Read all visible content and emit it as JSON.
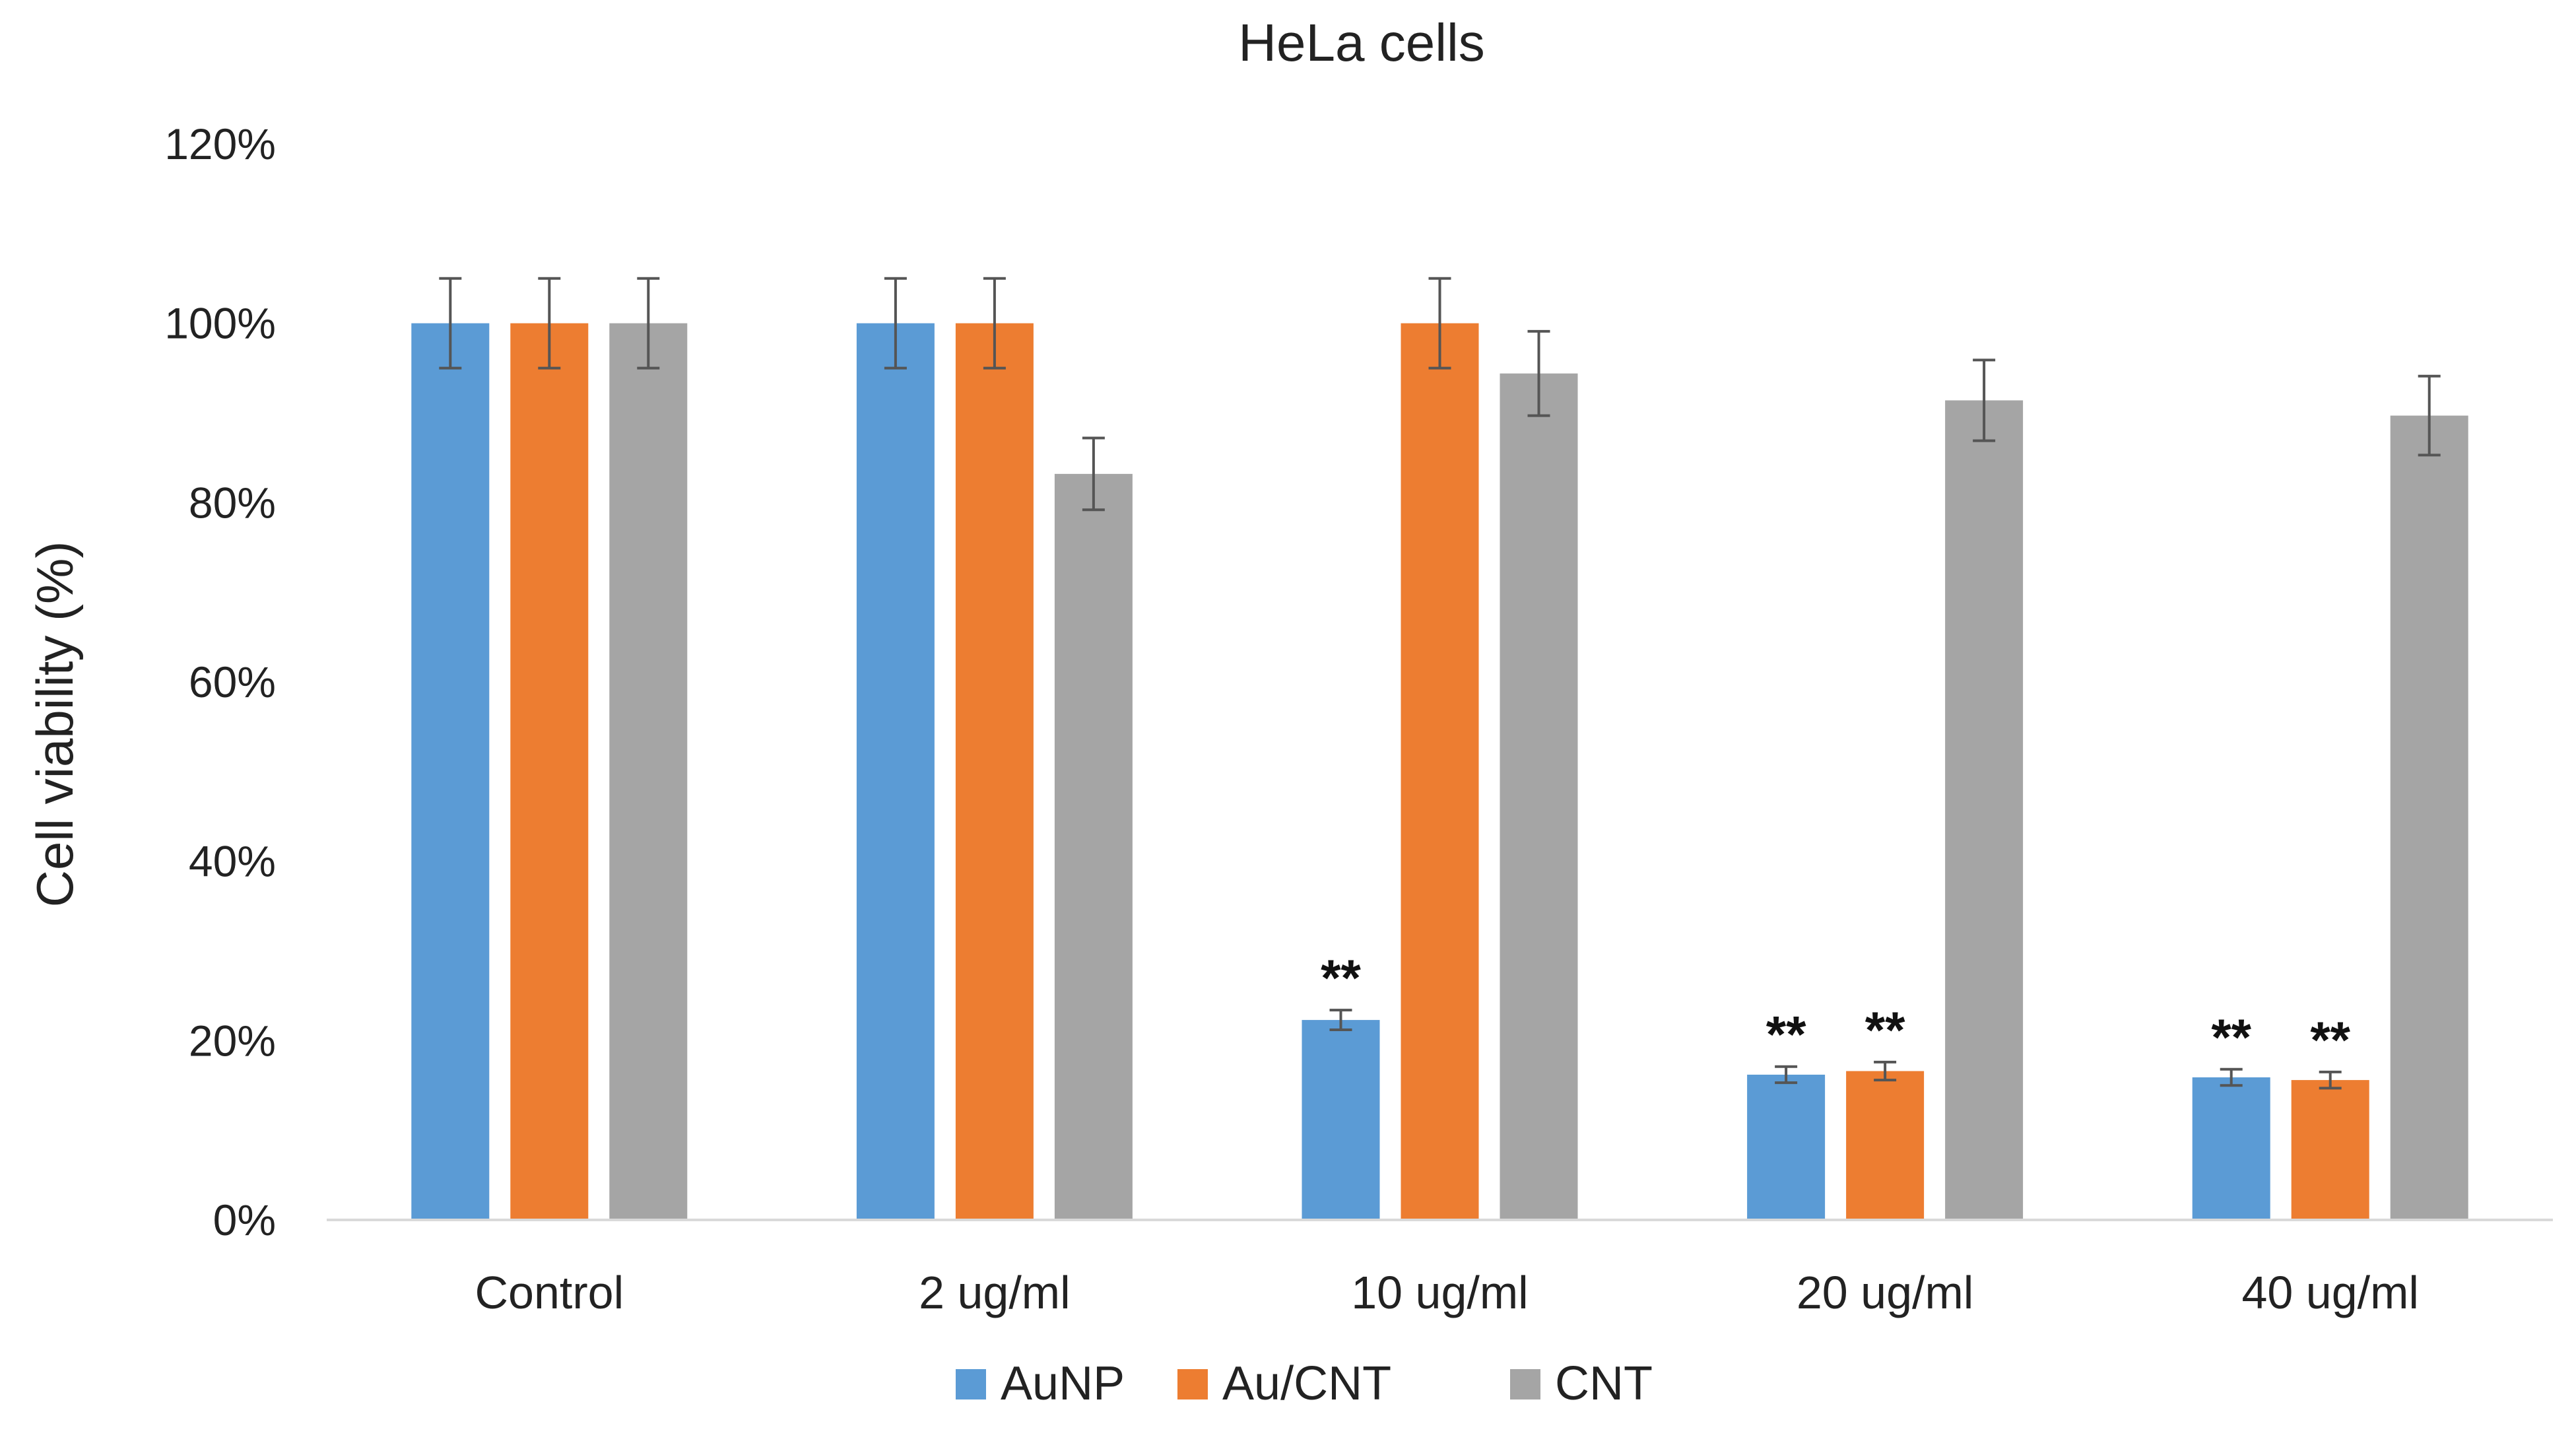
{
  "chart_data": {
    "type": "bar",
    "title": "HeLa cells",
    "xlabel": "",
    "ylabel": "Cell viability (%)",
    "ylim": [
      0,
      120
    ],
    "y_ticks": [
      {
        "value": 0,
        "label": "0%"
      },
      {
        "value": 20,
        "label": "20%"
      },
      {
        "value": 40,
        "label": "40%"
      },
      {
        "value": 60,
        "label": "60%"
      },
      {
        "value": 80,
        "label": "80%"
      },
      {
        "value": 100,
        "label": "100%"
      },
      {
        "value": 120,
        "label": "120%"
      }
    ],
    "grid": false,
    "legend_position": "bottom-center",
    "categories": [
      "Control",
      "2 ug/ml",
      "10 ug/ml",
      "20 ug/ml",
      "40 ug/ml"
    ],
    "series": [
      {
        "name": "AuNP",
        "color": "#5B9BD5",
        "values": [
          100,
          100,
          22.3,
          16.2,
          15.9
        ],
        "errors": [
          5,
          5,
          1.1,
          0.9,
          0.9
        ],
        "annotations": [
          "",
          "",
          "**",
          "**",
          "**"
        ]
      },
      {
        "name": "Au/CNT",
        "color": "#ED7D31",
        "values": [
          100,
          100,
          100,
          16.6,
          15.6
        ],
        "errors": [
          5,
          5,
          5,
          1.0,
          0.9
        ],
        "annotations": [
          "",
          "",
          "",
          "**",
          "**"
        ]
      },
      {
        "name": "CNT",
        "color": "#A5A5A5",
        "values": [
          100,
          83.2,
          94.4,
          91.4,
          89.7
        ],
        "errors": [
          5,
          4.0,
          4.7,
          4.5,
          4.4
        ],
        "annotations": [
          "",
          "",
          "",
          "",
          ""
        ]
      }
    ]
  }
}
